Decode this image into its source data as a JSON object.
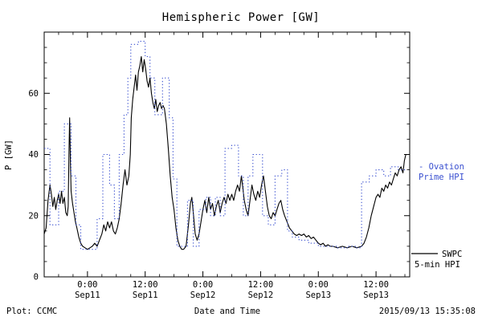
{
  "header": {
    "title": "Hemispheric Power [GW]"
  },
  "footer": {
    "left": "Plot: CCMC",
    "center_xlabel": "Date and Time",
    "right_timestamp": "2015/09/13 15:35:08"
  },
  "legend": {
    "ovation": {
      "line1": "- Ovation",
      "line2": "Prime HPI",
      "color": "#3a50d0"
    },
    "swpc": {
      "line1": "SWPC",
      "line2": "5-min HPI",
      "color": "#000000"
    }
  },
  "colors": {
    "ovation_blue": "#3a50d0",
    "swpc_black": "#000000",
    "axis": "#000000"
  },
  "chart_data": {
    "type": "line",
    "title": "Hemispheric Power [GW]",
    "xlabel": "Date and Time",
    "ylabel": "P [GW]",
    "ylim": [
      0,
      80
    ],
    "yticks": [
      0,
      20,
      40,
      60
    ],
    "y_minor_step": 5,
    "xlim": [
      0,
      76
    ],
    "x_unit": "hours from left edge of plot (approx Sep10 15:00)",
    "x_minor_step": 3,
    "grid": false,
    "legend_position": "right-margin",
    "xticks": [
      {
        "t": 9,
        "time": "0:00",
        "date": "Sep11"
      },
      {
        "t": 21,
        "time": "12:00",
        "date": "Sep11"
      },
      {
        "t": 33,
        "time": "0:00",
        "date": "Sep12"
      },
      {
        "t": 45,
        "time": "12:00",
        "date": "Sep12"
      },
      {
        "t": 57,
        "time": "0:00",
        "date": "Sep13"
      },
      {
        "t": 69,
        "time": "12:00",
        "date": "Sep13"
      }
    ],
    "series": [
      {
        "name": "SWPC 5-min HPI",
        "style": "solid",
        "interpolation": "linear",
        "color": "#000000",
        "points": [
          [
            0,
            14
          ],
          [
            0.4,
            16
          ],
          [
            0.8,
            25
          ],
          [
            1.2,
            30
          ],
          [
            1.5,
            27
          ],
          [
            1.8,
            23
          ],
          [
            2.1,
            26
          ],
          [
            2.4,
            22
          ],
          [
            2.7,
            25
          ],
          [
            3,
            27
          ],
          [
            3.3,
            24
          ],
          [
            3.6,
            28
          ],
          [
            3.9,
            24
          ],
          [
            4.2,
            26
          ],
          [
            4.5,
            21
          ],
          [
            4.8,
            20
          ],
          [
            5,
            23
          ],
          [
            5.15,
            40
          ],
          [
            5.3,
            52
          ],
          [
            5.45,
            38
          ],
          [
            5.6,
            28
          ],
          [
            5.9,
            24
          ],
          [
            6.2,
            21
          ],
          [
            6.5,
            18
          ],
          [
            6.8,
            16
          ],
          [
            7.2,
            13
          ],
          [
            7.6,
            11
          ],
          [
            8,
            10
          ],
          [
            8.5,
            9.5
          ],
          [
            9,
            9
          ],
          [
            9.5,
            9.5
          ],
          [
            10,
            10
          ],
          [
            10.5,
            11
          ],
          [
            11,
            10
          ],
          [
            11.5,
            12
          ],
          [
            12,
            14
          ],
          [
            12.4,
            17
          ],
          [
            12.8,
            15
          ],
          [
            13.2,
            18
          ],
          [
            13.6,
            16
          ],
          [
            14,
            18
          ],
          [
            14.4,
            15
          ],
          [
            14.8,
            14
          ],
          [
            15.2,
            16
          ],
          [
            15.6,
            19
          ],
          [
            16,
            24
          ],
          [
            16.4,
            30
          ],
          [
            16.8,
            35
          ],
          [
            17.2,
            30
          ],
          [
            17.6,
            33
          ],
          [
            17.9,
            40
          ],
          [
            18.1,
            52
          ],
          [
            18.4,
            58
          ],
          [
            18.7,
            62
          ],
          [
            19,
            66
          ],
          [
            19.3,
            61
          ],
          [
            19.6,
            67
          ],
          [
            19.9,
            69
          ],
          [
            20.2,
            72
          ],
          [
            20.5,
            67
          ],
          [
            20.8,
            71
          ],
          [
            21.1,
            68
          ],
          [
            21.4,
            64
          ],
          [
            21.7,
            62
          ],
          [
            22,
            65
          ],
          [
            22.3,
            60
          ],
          [
            22.6,
            57
          ],
          [
            22.9,
            55
          ],
          [
            23.2,
            58
          ],
          [
            23.5,
            54
          ],
          [
            23.8,
            56
          ],
          [
            24.1,
            57
          ],
          [
            24.4,
            55
          ],
          [
            24.7,
            56
          ],
          [
            25,
            55
          ],
          [
            25.4,
            50
          ],
          [
            25.8,
            42
          ],
          [
            26.2,
            33
          ],
          [
            26.6,
            26
          ],
          [
            27,
            22
          ],
          [
            27.4,
            16
          ],
          [
            27.8,
            12
          ],
          [
            28.2,
            10
          ],
          [
            28.6,
            9
          ],
          [
            29,
            9
          ],
          [
            29.5,
            10
          ],
          [
            30,
            17
          ],
          [
            30.4,
            24
          ],
          [
            30.7,
            26
          ],
          [
            31,
            21
          ],
          [
            31.4,
            14
          ],
          [
            31.8,
            12
          ],
          [
            32.2,
            14
          ],
          [
            32.6,
            18
          ],
          [
            33,
            22
          ],
          [
            33.4,
            25
          ],
          [
            33.8,
            21
          ],
          [
            34.2,
            26
          ],
          [
            34.6,
            22
          ],
          [
            35,
            24
          ],
          [
            35.4,
            20
          ],
          [
            35.8,
            23
          ],
          [
            36.2,
            25
          ],
          [
            36.6,
            21
          ],
          [
            37,
            24
          ],
          [
            37.4,
            26
          ],
          [
            37.8,
            24
          ],
          [
            38.2,
            27
          ],
          [
            38.6,
            25
          ],
          [
            39,
            27
          ],
          [
            39.4,
            25
          ],
          [
            39.8,
            28
          ],
          [
            40.2,
            30
          ],
          [
            40.6,
            28
          ],
          [
            41,
            33
          ],
          [
            41.3,
            29
          ],
          [
            41.6,
            25
          ],
          [
            42,
            22
          ],
          [
            42.4,
            20
          ],
          [
            42.8,
            25
          ],
          [
            43.2,
            30
          ],
          [
            43.6,
            27
          ],
          [
            44,
            25
          ],
          [
            44.4,
            28
          ],
          [
            44.8,
            26
          ],
          [
            45.2,
            30
          ],
          [
            45.6,
            33
          ],
          [
            46,
            28
          ],
          [
            46.4,
            23
          ],
          [
            46.8,
            20
          ],
          [
            47.2,
            19
          ],
          [
            47.6,
            21
          ],
          [
            48,
            20
          ],
          [
            48.4,
            22
          ],
          [
            48.8,
            24
          ],
          [
            49.2,
            25
          ],
          [
            49.6,
            22
          ],
          [
            50,
            20
          ],
          [
            50.5,
            18
          ],
          [
            51,
            16
          ],
          [
            51.5,
            15
          ],
          [
            52,
            14
          ],
          [
            52.5,
            13.5
          ],
          [
            53,
            14
          ],
          [
            53.5,
            13.5
          ],
          [
            54,
            14
          ],
          [
            54.5,
            13
          ],
          [
            55,
            13.5
          ],
          [
            55.5,
            12.5
          ],
          [
            56,
            13
          ],
          [
            56.5,
            12
          ],
          [
            57,
            11
          ],
          [
            57.5,
            10.5
          ],
          [
            58,
            11
          ],
          [
            58.5,
            10
          ],
          [
            59,
            10.5
          ],
          [
            59.5,
            10
          ],
          [
            60,
            10
          ],
          [
            61,
            9.5
          ],
          [
            62,
            10
          ],
          [
            63,
            9.5
          ],
          [
            64,
            10
          ],
          [
            65,
            9.5
          ],
          [
            66,
            10
          ],
          [
            66.5,
            11
          ],
          [
            67,
            13
          ],
          [
            67.5,
            16
          ],
          [
            68,
            20
          ],
          [
            68.5,
            23
          ],
          [
            69,
            26
          ],
          [
            69.4,
            27
          ],
          [
            69.8,
            26
          ],
          [
            70.2,
            29
          ],
          [
            70.6,
            28
          ],
          [
            71,
            30
          ],
          [
            71.4,
            29
          ],
          [
            71.8,
            31
          ],
          [
            72.2,
            30
          ],
          [
            72.6,
            32
          ],
          [
            73,
            34
          ],
          [
            73.4,
            33
          ],
          [
            73.8,
            35
          ],
          [
            74.2,
            36
          ],
          [
            74.6,
            34
          ],
          [
            74.9,
            38
          ],
          [
            75.2,
            40
          ]
        ]
      },
      {
        "name": "Ovation Prime HPI",
        "style": "dotted",
        "interpolation": "step-after",
        "color": "#3a50d0",
        "hold_until": 75.2,
        "points": [
          [
            0,
            42
          ],
          [
            1.2,
            17
          ],
          [
            3,
            28
          ],
          [
            4.2,
            50
          ],
          [
            5.6,
            33
          ],
          [
            6.6,
            17
          ],
          [
            7.6,
            9
          ],
          [
            11,
            19
          ],
          [
            12.2,
            40
          ],
          [
            13.6,
            30
          ],
          [
            14.6,
            19
          ],
          [
            15.6,
            40
          ],
          [
            16.6,
            53
          ],
          [
            17.4,
            65
          ],
          [
            18,
            76
          ],
          [
            19.6,
            77
          ],
          [
            21,
            72
          ],
          [
            22,
            65
          ],
          [
            23,
            53
          ],
          [
            24.6,
            65
          ],
          [
            26,
            52
          ],
          [
            26.8,
            32
          ],
          [
            27.6,
            10
          ],
          [
            29.8,
            25
          ],
          [
            31,
            10
          ],
          [
            32.2,
            22
          ],
          [
            33.6,
            26
          ],
          [
            34.6,
            20
          ],
          [
            35.6,
            26
          ],
          [
            36.6,
            20
          ],
          [
            37.6,
            42
          ],
          [
            39,
            43
          ],
          [
            40.4,
            33
          ],
          [
            41.4,
            20
          ],
          [
            42.4,
            33
          ],
          [
            43.4,
            40
          ],
          [
            44.6,
            40
          ],
          [
            45.4,
            20
          ],
          [
            46.6,
            17
          ],
          [
            48,
            33
          ],
          [
            49.4,
            35
          ],
          [
            50.6,
            15
          ],
          [
            51.6,
            13
          ],
          [
            53,
            12
          ],
          [
            55,
            11
          ],
          [
            57,
            10
          ],
          [
            59,
            10
          ],
          [
            61,
            9.5
          ],
          [
            63,
            10
          ],
          [
            65,
            9.5
          ],
          [
            66,
            31
          ],
          [
            67.6,
            33
          ],
          [
            69,
            35
          ],
          [
            70.6,
            33
          ],
          [
            72,
            36
          ],
          [
            73.6,
            35
          ]
        ]
      }
    ]
  }
}
